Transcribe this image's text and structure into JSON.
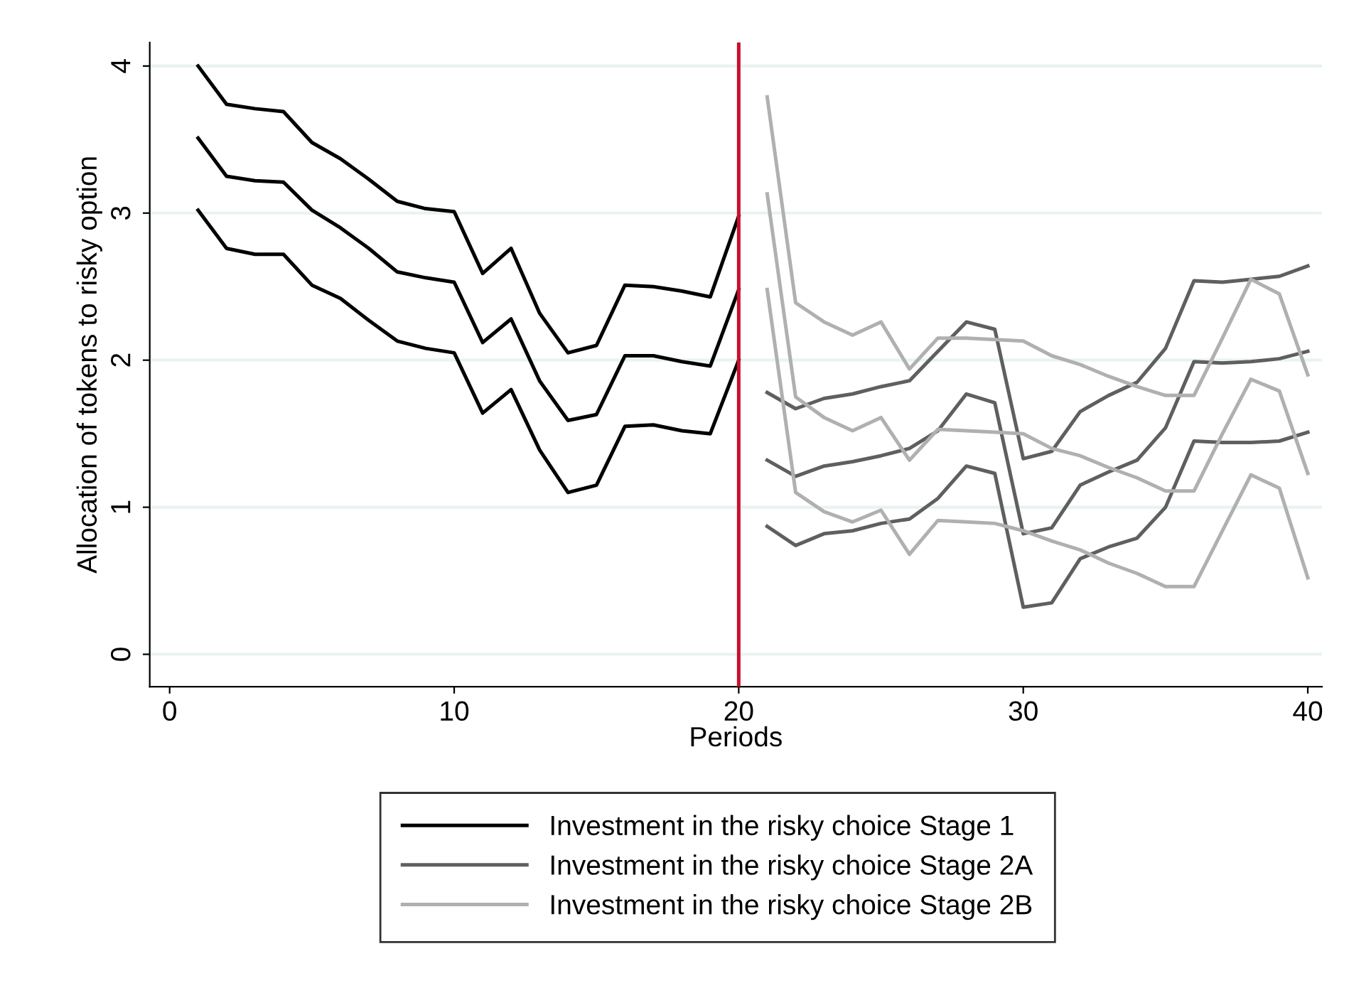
{
  "chart_data": {
    "type": "line",
    "xlabel": "Periods",
    "ylabel": "Allocation of tokens to risky option",
    "xlim": [
      -0.7,
      40.5
    ],
    "xticks": [
      0,
      10,
      20,
      30,
      40
    ],
    "ylim": [
      -0.22,
      4.16
    ],
    "yticks": [
      0,
      1,
      2,
      3,
      4
    ],
    "grid": "y",
    "legend": "bottom",
    "marker": "none",
    "line_style": "solid",
    "ref_lines": [
      {
        "axis": "x",
        "value": 20,
        "color": "#c8102e"
      }
    ],
    "series": [
      {
        "color": "#000000",
        "x": [
          1,
          2,
          3,
          4,
          5,
          6,
          7,
          8,
          9,
          10,
          11,
          12,
          13,
          14,
          15,
          16,
          17,
          18,
          19,
          20
        ],
        "values": [
          4.0,
          3.74,
          3.71,
          3.69,
          3.48,
          3.37,
          3.23,
          3.08,
          3.03,
          3.01,
          2.59,
          2.76,
          2.32,
          2.05,
          2.1,
          2.51,
          2.5,
          2.47,
          2.43,
          2.98
        ]
      },
      {
        "name": "Investment in the risky choice Stage 1",
        "color": "#000000",
        "x": [
          1,
          2,
          3,
          4,
          5,
          6,
          7,
          8,
          9,
          10,
          11,
          12,
          13,
          14,
          15,
          16,
          17,
          18,
          19,
          20
        ],
        "values": [
          3.51,
          3.25,
          3.22,
          3.21,
          3.02,
          2.9,
          2.76,
          2.6,
          2.56,
          2.53,
          2.12,
          2.28,
          1.86,
          1.59,
          1.63,
          2.03,
          2.03,
          1.99,
          1.96,
          2.48
        ]
      },
      {
        "color": "#000000",
        "x": [
          1,
          2,
          3,
          4,
          5,
          6,
          7,
          8,
          9,
          10,
          11,
          12,
          13,
          14,
          15,
          16,
          17,
          18,
          19,
          20
        ],
        "values": [
          3.02,
          2.76,
          2.72,
          2.72,
          2.51,
          2.42,
          2.27,
          2.13,
          2.08,
          2.05,
          1.64,
          1.8,
          1.39,
          1.1,
          1.15,
          1.55,
          1.56,
          1.52,
          1.5,
          2.0
        ]
      },
      {
        "color": "#5f5f5f",
        "x": [
          21,
          22,
          23,
          24,
          25,
          26,
          27,
          28,
          29,
          30,
          31,
          32,
          33,
          34,
          35,
          36,
          37,
          38,
          39,
          40
        ],
        "values": [
          1.78,
          1.67,
          1.74,
          1.77,
          1.82,
          1.86,
          2.06,
          2.26,
          2.21,
          1.33,
          1.38,
          1.65,
          1.76,
          1.85,
          2.08,
          2.54,
          2.53,
          2.55,
          2.57,
          2.64
        ]
      },
      {
        "name": "Investment in the risky choice Stage 2A",
        "color": "#5f5f5f",
        "x": [
          21,
          22,
          23,
          24,
          25,
          26,
          27,
          28,
          29,
          30,
          31,
          32,
          33,
          34,
          35,
          36,
          37,
          38,
          39,
          40
        ],
        "values": [
          1.32,
          1.21,
          1.28,
          1.31,
          1.35,
          1.4,
          1.52,
          1.77,
          1.71,
          0.82,
          0.86,
          1.15,
          1.24,
          1.32,
          1.54,
          1.99,
          1.98,
          1.99,
          2.01,
          2.06
        ]
      },
      {
        "color": "#5f5f5f",
        "x": [
          21,
          22,
          23,
          24,
          25,
          26,
          27,
          28,
          29,
          30,
          31,
          32,
          33,
          34,
          35,
          36,
          37,
          38,
          39,
          40
        ],
        "values": [
          0.87,
          0.74,
          0.82,
          0.84,
          0.89,
          0.92,
          1.06,
          1.28,
          1.23,
          0.32,
          0.35,
          0.65,
          0.73,
          0.79,
          1.0,
          1.45,
          1.44,
          1.44,
          1.45,
          1.51
        ]
      },
      {
        "color": "#b0b0b0",
        "x": [
          21,
          22,
          23,
          24,
          25,
          26,
          27,
          28,
          29,
          30,
          31,
          32,
          33,
          34,
          35,
          36,
          37,
          38,
          39,
          40
        ],
        "values": [
          3.79,
          2.39,
          2.26,
          2.17,
          2.26,
          1.94,
          2.15,
          2.15,
          2.14,
          2.13,
          2.03,
          1.97,
          1.89,
          1.82,
          1.76,
          1.76,
          2.15,
          2.55,
          2.45,
          1.9
        ]
      },
      {
        "name": "Investment in the risky choice Stage 2B",
        "color": "#b0b0b0",
        "x": [
          21,
          22,
          23,
          24,
          25,
          26,
          27,
          28,
          29,
          30,
          31,
          32,
          33,
          34,
          35,
          36,
          37,
          38,
          39,
          40
        ],
        "values": [
          3.13,
          1.75,
          1.61,
          1.52,
          1.61,
          1.32,
          1.53,
          1.52,
          1.51,
          1.5,
          1.4,
          1.35,
          1.27,
          1.2,
          1.11,
          1.11,
          1.5,
          1.87,
          1.79,
          1.23
        ]
      },
      {
        "color": "#b0b0b0",
        "x": [
          21,
          22,
          23,
          24,
          25,
          26,
          27,
          28,
          29,
          30,
          31,
          32,
          33,
          34,
          35,
          36,
          37,
          38,
          39,
          40
        ],
        "values": [
          2.48,
          1.1,
          0.97,
          0.9,
          0.98,
          0.68,
          0.91,
          0.9,
          0.89,
          0.84,
          0.77,
          0.71,
          0.62,
          0.55,
          0.46,
          0.46,
          0.84,
          1.22,
          1.13,
          0.52
        ]
      }
    ]
  }
}
